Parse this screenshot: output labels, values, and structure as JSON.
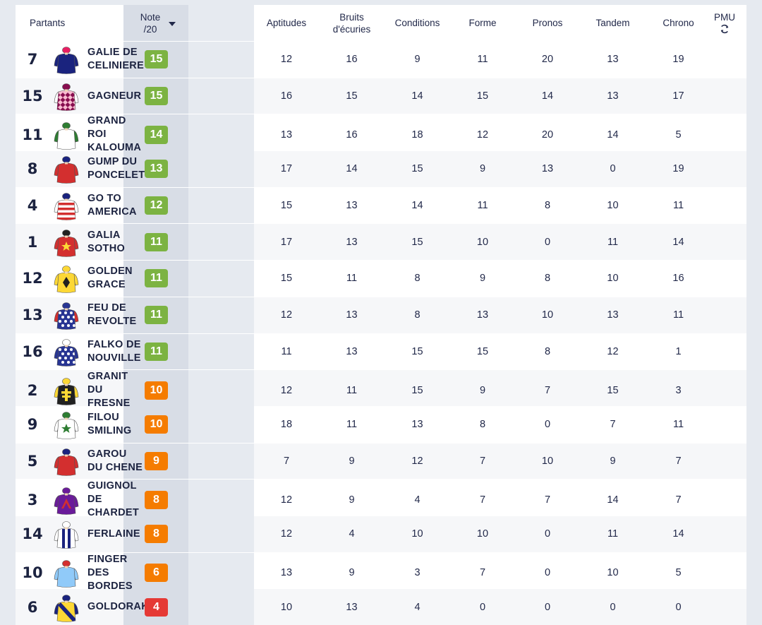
{
  "header": {
    "partants": "Partants",
    "note_line1": "Note",
    "note_line2": "/20",
    "columns": [
      "Aptitudes",
      "Bruits d'écuries",
      "Conditions",
      "Forme",
      "Pronos",
      "Tandem",
      "Chrono"
    ],
    "pmu": "PMU"
  },
  "colors": {
    "green": "#7cb342",
    "orange": "#f57c00",
    "red": "#e53935"
  },
  "rows": [
    {
      "num": "7",
      "name": "GALIE DE CELINIERE",
      "note": "15",
      "level": "green",
      "scores": [
        "12",
        "16",
        "9",
        "11",
        "20",
        "13",
        "19"
      ],
      "silk": {
        "body": "#1a237e",
        "pattern": "solid",
        "sec": "#1a237e",
        "cap": "#e91e63",
        "sleeve": "#1a237e"
      }
    },
    {
      "num": "15",
      "name": "GAGNEUR",
      "note": "15",
      "level": "green",
      "scores": [
        "16",
        "15",
        "14",
        "15",
        "14",
        "13",
        "17"
      ],
      "silk": {
        "body": "#f8bbd0",
        "pattern": "diamonds",
        "sec": "#880e4f",
        "cap": "#880e4f",
        "sleeve": "#ffffff"
      }
    },
    {
      "num": "11",
      "name": "GRAND ROI KALOUMA",
      "note": "14",
      "level": "green",
      "scores": [
        "13",
        "16",
        "18",
        "12",
        "20",
        "14",
        "5"
      ],
      "silk": {
        "body": "#ffffff",
        "pattern": "solid",
        "sec": "#2e7d32",
        "cap": "#2e7d32",
        "sleeve": "#2e7d32"
      }
    },
    {
      "num": "8",
      "name": "GUMP DU PONCELET",
      "note": "13",
      "level": "green",
      "scores": [
        "17",
        "14",
        "15",
        "9",
        "13",
        "0",
        "19"
      ],
      "silk": {
        "body": "#d32f2f",
        "pattern": "solid",
        "sec": "#d32f2f",
        "cap": "#1a237e",
        "sleeve": "#d32f2f"
      }
    },
    {
      "num": "4",
      "name": "GO TO AMERICA",
      "note": "12",
      "level": "green",
      "scores": [
        "15",
        "13",
        "14",
        "11",
        "8",
        "10",
        "11"
      ],
      "silk": {
        "body": "#ffffff",
        "pattern": "hoops",
        "sec": "#d32f2f",
        "cap": "#1a237e",
        "sleeve": "#ffffff"
      }
    },
    {
      "num": "1",
      "name": "GALIA SOTHO",
      "note": "11",
      "level": "green",
      "scores": [
        "17",
        "13",
        "15",
        "10",
        "0",
        "11",
        "14"
      ],
      "silk": {
        "body": "#d32f2f",
        "pattern": "star",
        "sec": "#fdd835",
        "cap": "#212121",
        "sleeve": "#d32f2f"
      }
    },
    {
      "num": "12",
      "name": "GOLDEN GRACE",
      "note": "11",
      "level": "green",
      "scores": [
        "15",
        "11",
        "8",
        "9",
        "8",
        "10",
        "16"
      ],
      "silk": {
        "body": "#fdd835",
        "pattern": "diamond",
        "sec": "#212121",
        "cap": "#fdd835",
        "sleeve": "#fdd835"
      }
    },
    {
      "num": "13",
      "name": "FEU DE REVOLTE",
      "note": "11",
      "level": "green",
      "scores": [
        "12",
        "13",
        "8",
        "13",
        "10",
        "13",
        "11"
      ],
      "silk": {
        "body": "#283593",
        "pattern": "dots",
        "sec": "#ffffff",
        "cap": "#283593",
        "sleeve": "#d32f2f"
      }
    },
    {
      "num": "16",
      "name": "FALKO DE NOUVILLE",
      "note": "11",
      "level": "green",
      "scores": [
        "11",
        "13",
        "15",
        "15",
        "8",
        "12",
        "1"
      ],
      "silk": {
        "body": "#283593",
        "pattern": "dots",
        "sec": "#ffffff",
        "cap": "#ffffff",
        "sleeve": "#283593"
      }
    },
    {
      "num": "2",
      "name": "GRANIT DU FRESNE",
      "note": "10",
      "level": "orange",
      "scores": [
        "12",
        "11",
        "15",
        "9",
        "7",
        "15",
        "3"
      ],
      "silk": {
        "body": "#212121",
        "pattern": "cross",
        "sec": "#fdd835",
        "cap": "#fdd835",
        "sleeve": "#fdd835"
      }
    },
    {
      "num": "9",
      "name": "FILOU SMILING",
      "note": "10",
      "level": "orange",
      "scores": [
        "18",
        "11",
        "13",
        "8",
        "0",
        "7",
        "11"
      ],
      "silk": {
        "body": "#ffffff",
        "pattern": "star",
        "sec": "#2e7d32",
        "cap": "#2e7d32",
        "sleeve": "#ffffff"
      }
    },
    {
      "num": "5",
      "name": "GAROU DU CHENE",
      "note": "9",
      "level": "orange",
      "scores": [
        "7",
        "9",
        "12",
        "7",
        "10",
        "9",
        "7"
      ],
      "silk": {
        "body": "#d32f2f",
        "pattern": "solid",
        "sec": "#d32f2f",
        "cap": "#1a237e",
        "sleeve": "#d32f2f"
      }
    },
    {
      "num": "3",
      "name": "GUIGNOL DE CHARDET",
      "note": "8",
      "level": "orange",
      "scores": [
        "12",
        "9",
        "4",
        "7",
        "7",
        "14",
        "7"
      ],
      "silk": {
        "body": "#6a1b9a",
        "pattern": "chevron",
        "sec": "#d32f2f",
        "cap": "#6a1b9a",
        "sleeve": "#6a1b9a"
      }
    },
    {
      "num": "14",
      "name": "FERLAINE",
      "note": "8",
      "level": "orange",
      "scores": [
        "12",
        "4",
        "10",
        "10",
        "0",
        "11",
        "14"
      ],
      "silk": {
        "body": "#ffffff",
        "pattern": "stripes",
        "sec": "#1a237e",
        "cap": "#ffffff",
        "sleeve": "#ffffff"
      }
    },
    {
      "num": "10",
      "name": "FINGER DES BORDES",
      "note": "6",
      "level": "orange",
      "scores": [
        "13",
        "9",
        "3",
        "7",
        "0",
        "10",
        "5"
      ],
      "silk": {
        "body": "#90caf9",
        "pattern": "solid",
        "sec": "#90caf9",
        "cap": "#d32f2f",
        "sleeve": "#90caf9"
      }
    },
    {
      "num": "6",
      "name": "GOLDORAK",
      "note": "4",
      "level": "red",
      "scores": [
        "10",
        "13",
        "4",
        "0",
        "0",
        "0",
        "0"
      ],
      "silk": {
        "body": "#fdd835",
        "pattern": "sash",
        "sec": "#1a237e",
        "cap": "#1a237e",
        "sleeve": "#1a237e"
      }
    }
  ]
}
